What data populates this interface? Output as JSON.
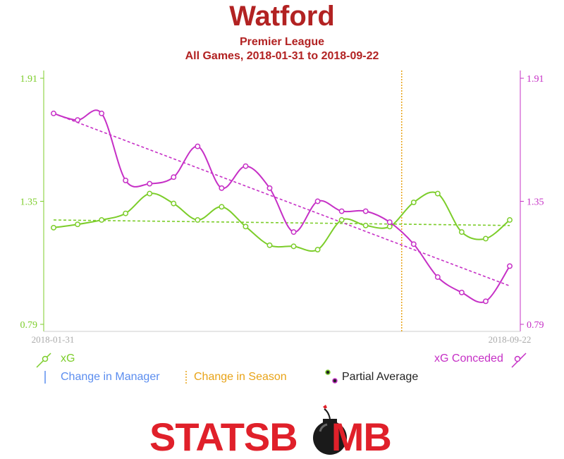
{
  "header": {
    "title": "Watford",
    "subtitle_league": "Premier League",
    "subtitle_range": "All Games, 2018-01-31 to 2018-09-22"
  },
  "legend": {
    "xg": "xG",
    "xg_conceded": "xG Conceded",
    "manager_change": "Change in Manager",
    "season_change": "Change in Season",
    "partial_average": "Partial Average"
  },
  "brand": {
    "left_text": "STATSB",
    "right_text": "MB"
  },
  "colors": {
    "xg": "#7ccd2a",
    "xg_conceded": "#c630c6",
    "season": "#e8a317",
    "manager": "#5b8def",
    "brand_red": "#e0202a",
    "axis": "#cccccc"
  },
  "chart_data": {
    "type": "line",
    "x_start_label": "2018-01-31",
    "x_end_label": "2018-09-22",
    "y_ticks": [
      0.79,
      1.35,
      1.91
    ],
    "ylim": [
      0.79,
      1.91
    ],
    "season_change_index": 14.5,
    "series": [
      {
        "name": "xG",
        "color": "#7ccd2a",
        "values": [
          1.23,
          1.245,
          1.265,
          1.295,
          1.385,
          1.34,
          1.265,
          1.325,
          1.235,
          1.15,
          1.145,
          1.13,
          1.265,
          1.24,
          1.235,
          1.345,
          1.385,
          1.21,
          1.18,
          1.265
        ],
        "trend": [
          1.265,
          1.24
        ]
      },
      {
        "name": "xG Conceded",
        "color": "#c630c6",
        "values": [
          1.75,
          1.72,
          1.75,
          1.445,
          1.43,
          1.46,
          1.6,
          1.41,
          1.51,
          1.41,
          1.21,
          1.35,
          1.305,
          1.305,
          1.255,
          1.155,
          1.005,
          0.935,
          0.895,
          1.055
        ],
        "trend": [
          1.75,
          0.965
        ]
      }
    ]
  }
}
